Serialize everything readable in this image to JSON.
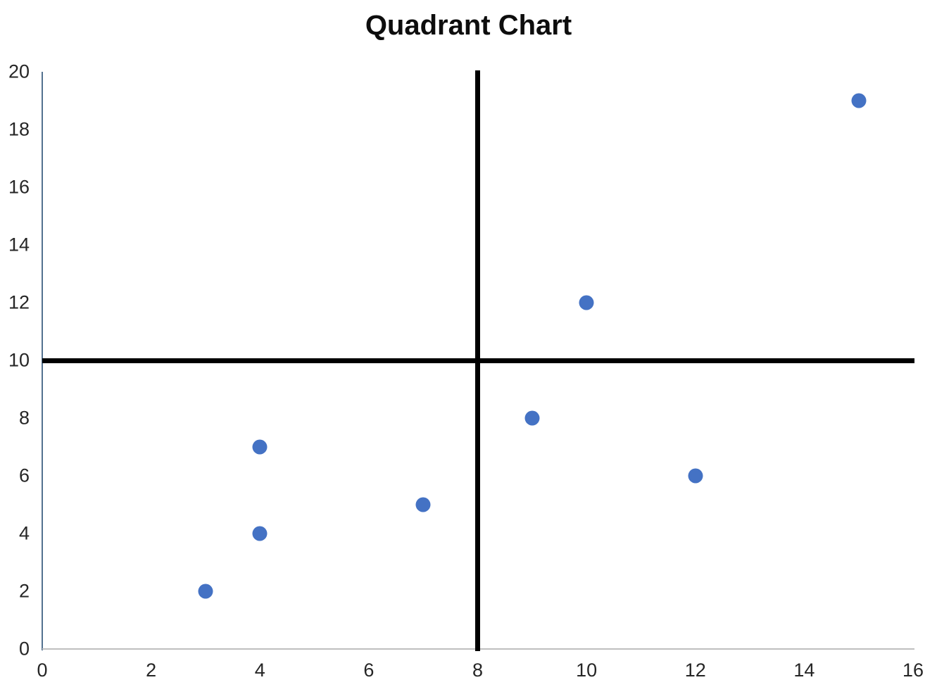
{
  "page": {
    "background_color": "#ffffff"
  },
  "chart_data": {
    "type": "scatter",
    "title": "Quadrant Chart",
    "xlabel": "",
    "ylabel": "",
    "xlim": [
      0,
      16
    ],
    "ylim": [
      0,
      20
    ],
    "x_ticks": [
      0,
      2,
      4,
      6,
      8,
      10,
      12,
      14,
      16
    ],
    "y_ticks": [
      0,
      2,
      4,
      6,
      8,
      10,
      12,
      14,
      16,
      18,
      20
    ],
    "grid": false,
    "legend": "none",
    "points": [
      {
        "x": 3,
        "y": 2
      },
      {
        "x": 4,
        "y": 4
      },
      {
        "x": 4,
        "y": 7
      },
      {
        "x": 7,
        "y": 5
      },
      {
        "x": 9,
        "y": 8
      },
      {
        "x": 10,
        "y": 12
      },
      {
        "x": 12,
        "y": 6
      },
      {
        "x": 15,
        "y": 19
      }
    ],
    "quadrant_divider_x": 8,
    "quadrant_divider_y": 10,
    "point_color": "#4472C4",
    "quadrant_line_color": "#000000",
    "x_axis_color": "#BFBFBF",
    "y_axis_color": "#53718F",
    "tick_label_color": "#262626",
    "title_color": "#0d0d0d"
  }
}
